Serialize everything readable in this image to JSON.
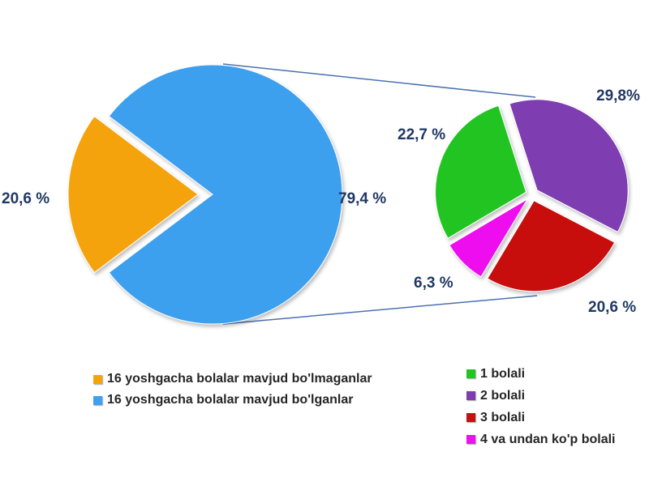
{
  "chart_data": [
    {
      "type": "pie",
      "slices": [
        {
          "label": "16 yoshgacha bolalar mavjud bo'lmaganlar",
          "value": 20.6,
          "display": "20,6 %",
          "color": "#f5a30a"
        },
        {
          "label": "16 yoshgacha bolalar mavjud bo'lganlar",
          "value": 79.4,
          "display": "79,4 %",
          "color": "#3ea0ee"
        }
      ]
    },
    {
      "type": "pie",
      "slices": [
        {
          "label": "1 bolali",
          "value": 22.7,
          "display": "22,7 %",
          "color": "#22c422"
        },
        {
          "label": "2 bolali",
          "value": 29.8,
          "display": "29,8%",
          "color": "#7e3eb0"
        },
        {
          "label": "3 bolali",
          "value": 20.6,
          "display": "20,6 %",
          "color": "#c81010"
        },
        {
          "label": "4 va undan ko'p bolali",
          "value": 6.3,
          "display": "6,3 %",
          "color": "#ee10ee"
        }
      ]
    }
  ],
  "legend_left": [
    {
      "label": "16 yoshgacha bolalar mavjud bo'lmaganlar",
      "color": "#f5a30a"
    },
    {
      "label": "16 yoshgacha bolalar mavjud bo'lganlar",
      "color": "#3ea0ee"
    }
  ],
  "legend_right": [
    {
      "label": "1 bolali",
      "color": "#22c422"
    },
    {
      "label": "2 bolali",
      "color": "#7e3eb0"
    },
    {
      "label": "3 bolali",
      "color": "#c81010"
    },
    {
      "label": "4 va undan ko'p bolali",
      "color": "#ee10ee"
    }
  ]
}
